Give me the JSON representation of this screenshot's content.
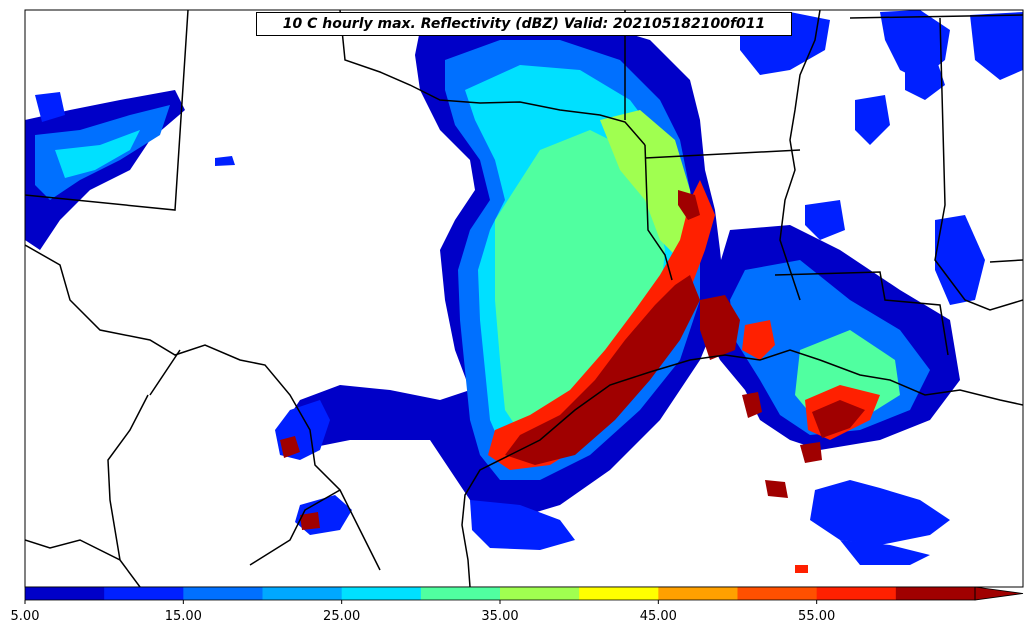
{
  "title": "10 C hourly max. Reflectivity (dBZ) Valid: 202105182100f011",
  "colorbar": {
    "colors": [
      "#0000c8",
      "#0020ff",
      "#0070ff",
      "#00a8ff",
      "#00e0ff",
      "#50ffa0",
      "#a0ff50",
      "#ffff00",
      "#ffa000",
      "#ff5000",
      "#ff2000",
      "#a00000"
    ],
    "ticks": [
      "5.00",
      "15.00",
      "25.00",
      "35.00",
      "45.00",
      "55.00"
    ],
    "extend": "max"
  }
}
